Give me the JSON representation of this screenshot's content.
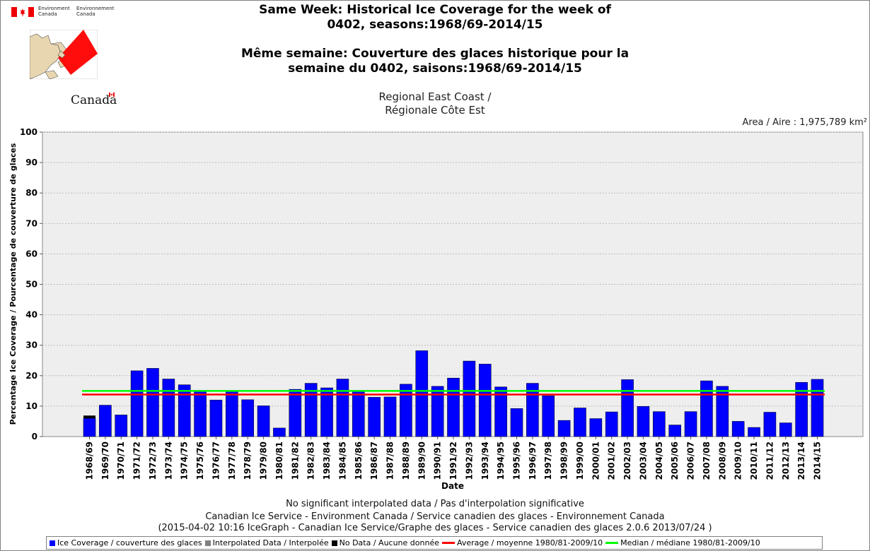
{
  "header": {
    "dept_en": "Environment\nCanada",
    "dept_fr": "Environnement\nCanada",
    "wordmark": "Canada",
    "title_line1": "Same Week: Historical Ice Coverage for the week of",
    "title_line2": "0402, seasons:1968/69-2014/15",
    "title_line3": "Même semaine: Couverture des glaces historique pour la",
    "title_line4": "semaine du 0402, saisons:1968/69-2014/15",
    "region_line1": "Regional East Coast /",
    "region_line2": "Régionale Côte Est",
    "area": "Area / Aire : 1,975,789 km²"
  },
  "footer": {
    "note1": "No significant interpolated data / Pas d'interpolation significative",
    "note2": "Canadian Ice Service - Environment Canada / Service canadien des glaces - Environnement Canada",
    "note3": "(2015-04-02 10:16 IceGraph - Canadian Ice Service/Graphe des glaces - Service canadien des glaces 2.0.6 2013/07/24 )"
  },
  "legend": {
    "ice": "Ice Coverage / couverture des glaces",
    "interp": "Interpolated Data / Interpolée",
    "nodata": "No Data / Aucune donnée",
    "average": "Average / moyenne 1980/81-2009/10",
    "median": "Median / médiane 1980/81-2009/10"
  },
  "colors": {
    "ice": "#0000ff",
    "interp": "#808080",
    "nodata": "#000000",
    "average": "#ff0000",
    "median": "#00ff00",
    "plot_bg": "#eeeeee"
  },
  "chart_data": {
    "type": "bar",
    "xlabel": "Date",
    "ylabel": "Percentage Ice Coverage / Pourcentage de couverture de glaces",
    "ylim": [
      0,
      100
    ],
    "yticks": [
      0,
      10,
      20,
      30,
      40,
      50,
      60,
      70,
      80,
      90,
      100
    ],
    "grid": true,
    "categories": [
      "1968/69",
      "1969/70",
      "1970/71",
      "1971/72",
      "1972/73",
      "1973/74",
      "1974/75",
      "1975/76",
      "1976/77",
      "1977/78",
      "1978/79",
      "1979/80",
      "1980/81",
      "1981/82",
      "1982/83",
      "1983/84",
      "1984/85",
      "1985/86",
      "1986/87",
      "1987/88",
      "1988/89",
      "1989/90",
      "1990/91",
      "1991/92",
      "1992/93",
      "1993/94",
      "1994/95",
      "1995/96",
      "1996/97",
      "1997/98",
      "1998/99",
      "1999/00",
      "2000/01",
      "2001/02",
      "2002/03",
      "2003/04",
      "2004/05",
      "2005/06",
      "2006/07",
      "2007/08",
      "2008/09",
      "2009/10",
      "2010/11",
      "2011/12",
      "2012/13",
      "2013/14",
      "2014/15"
    ],
    "series": [
      {
        "name": "Ice Coverage / couverture des glaces",
        "values": [
          6.0,
          10.3,
          7.1,
          21.6,
          22.4,
          18.9,
          17.0,
          15.0,
          12.0,
          15.0,
          12.1,
          10.1,
          2.8,
          15.5,
          17.5,
          16.0,
          18.9,
          14.8,
          12.9,
          13.0,
          17.2,
          28.2,
          16.5,
          19.2,
          24.8,
          23.8,
          16.3,
          9.2,
          17.5,
          13.4,
          5.3,
          9.4,
          5.9,
          8.1,
          18.7,
          9.9,
          8.2,
          3.8,
          8.2,
          18.3,
          16.5,
          5.0,
          3.0,
          8.0,
          4.5,
          17.8,
          18.8
        ]
      },
      {
        "name": "No Data / Aucune donnée",
        "values": [
          0.9,
          0,
          0,
          0,
          0,
          0,
          0,
          0,
          0,
          0,
          0,
          0,
          0,
          0,
          0,
          0,
          0,
          0,
          0,
          0,
          0,
          0,
          0,
          0,
          0,
          0,
          0,
          0,
          0,
          0,
          0,
          0,
          0,
          0,
          0,
          0,
          0,
          0,
          0,
          0,
          0,
          0,
          0,
          0,
          0,
          0,
          0
        ]
      }
    ],
    "average": 13.8,
    "median": 15.0
  }
}
